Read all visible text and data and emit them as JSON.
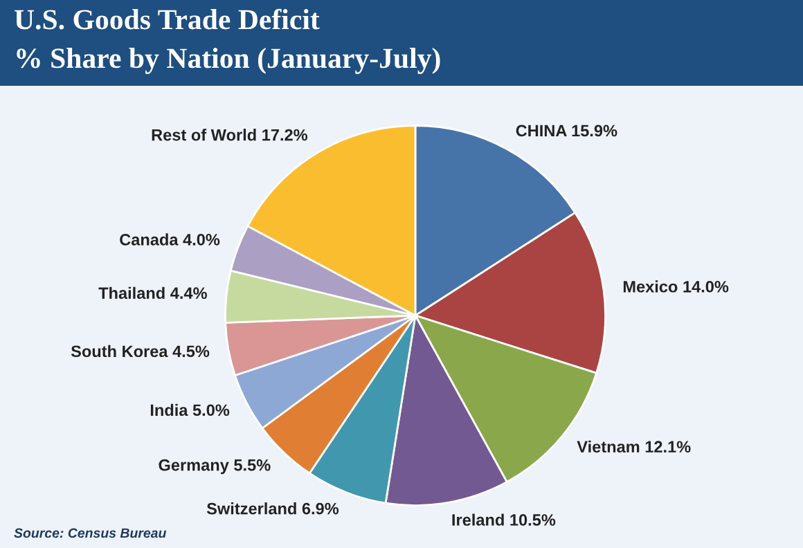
{
  "chart_data": {
    "type": "pie",
    "title": "U.S. Goods Trade Deficit",
    "subtitle": "% Share by Nation (January-July)",
    "categories": [
      "CHINA",
      "Mexico",
      "Vietnam",
      "Ireland",
      "Switzerland",
      "Germany",
      "India",
      "South Korea",
      "Thailand",
      "Canada",
      "Rest of World"
    ],
    "values": [
      15.9,
      14.0,
      12.1,
      10.5,
      6.9,
      5.5,
      5.0,
      4.5,
      4.4,
      4.0,
      17.2
    ],
    "value_labels": [
      "15.9%",
      "14.0%",
      "12.1%",
      "10.5%",
      "6.9%",
      "5.5%",
      "5.0%",
      "4.5%",
      "4.4%",
      "4.0%",
      "17.2%"
    ],
    "colors": [
      "#4674a9",
      "#aa4443",
      "#8ba74c",
      "#735991",
      "#4197ae",
      "#e07f34",
      "#8ea8d5",
      "#d99695",
      "#c6daa0",
      "#ab9fc4",
      "#fbbd30"
    ],
    "annotations": [
      "Source: Census Bureau"
    ],
    "legend": false
  }
}
